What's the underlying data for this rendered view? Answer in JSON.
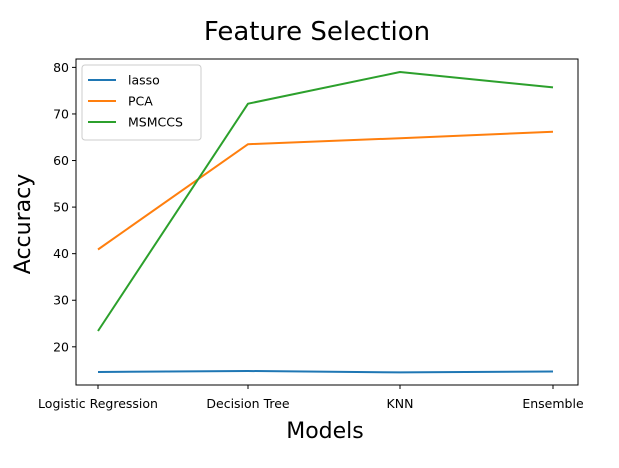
{
  "chart_data": {
    "type": "line",
    "title": "Feature Selection",
    "xlabel": "Models",
    "ylabel": "Accuracy",
    "categories": [
      "Logistic Regression",
      "Decision Tree",
      "KNN",
      "Ensemble"
    ],
    "yticks": [
      20,
      30,
      40,
      50,
      60,
      70,
      80
    ],
    "ylim": [
      11.8,
      81.8
    ],
    "grid": false,
    "legend_position": "top-left",
    "series": [
      {
        "name": "lasso",
        "color": "#1f77b4",
        "values": [
          14.6,
          14.8,
          14.5,
          14.7
        ]
      },
      {
        "name": "PCA",
        "color": "#ff7f0e",
        "values": [
          40.9,
          63.5,
          64.8,
          66.2
        ]
      },
      {
        "name": "MSMCCS",
        "color": "#2ca02c",
        "values": [
          23.4,
          72.2,
          79.0,
          75.7
        ]
      }
    ]
  }
}
